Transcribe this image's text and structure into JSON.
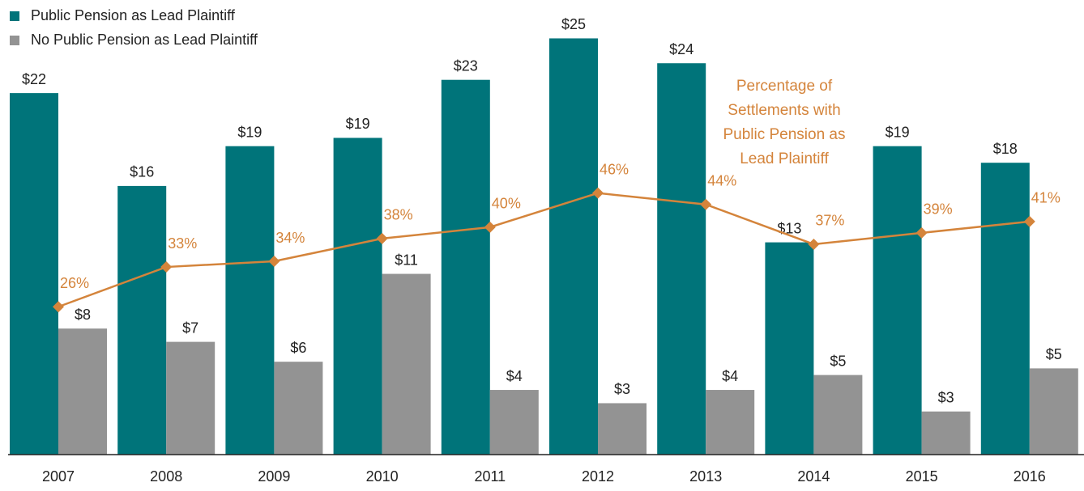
{
  "chart_data": {
    "type": "bar",
    "categories": [
      "2007",
      "2008",
      "2009",
      "2010",
      "2011",
      "2012",
      "2013",
      "2014",
      "2015",
      "2016"
    ],
    "series": [
      {
        "name": "Public Pension as Lead Plaintiff",
        "color": "#00747a",
        "values": [
          21.8,
          16.2,
          18.6,
          19.1,
          22.6,
          25.1,
          23.6,
          12.8,
          18.6,
          17.6
        ],
        "value_labels": [
          "$22",
          "$16",
          "$19",
          "$19",
          "$23",
          "$25",
          "$24",
          "$13",
          "$19",
          "$18"
        ]
      },
      {
        "name": "No Public Pension as Lead Plaintiff",
        "color": "#939393",
        "values": [
          7.6,
          6.8,
          5.6,
          10.9,
          3.9,
          3.1,
          3.9,
          4.8,
          2.6,
          5.2
        ],
        "value_labels": [
          "$8",
          "$7",
          "$6",
          "$11",
          "$4",
          "$3",
          "$4",
          "$5",
          "$3",
          "$5"
        ]
      },
      {
        "type": "line",
        "axis": "y2",
        "color": "#d4843b",
        "values": [
          26,
          33,
          34,
          38,
          40,
          46,
          44,
          37,
          39,
          41
        ],
        "value_labels": [
          "26%",
          "33%",
          "34%",
          "38%",
          "40%",
          "46%",
          "44%",
          "37%",
          "39%",
          "41%"
        ]
      }
    ],
    "annotation": [
      "Percentage of",
      "Settlements with",
      "Public Pension as",
      "Lead Plaintiff"
    ],
    "ylim": [
      0,
      24
    ],
    "y2lim": [
      0,
      70
    ],
    "legend": "top-left"
  }
}
